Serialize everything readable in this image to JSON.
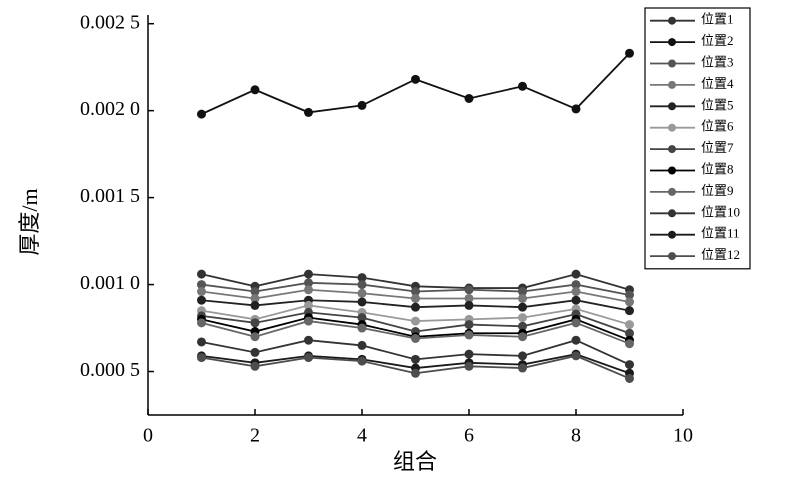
{
  "chart_data": {
    "type": "line",
    "x_label": "组合",
    "y_label": "厚度/m",
    "xlim": [
      0,
      10
    ],
    "xticks": [
      0,
      2,
      4,
      6,
      8,
      10
    ],
    "ylim": [
      0.00025,
      0.00255
    ],
    "yticks": [
      {
        "value": 0.0005,
        "label": "0.000 5"
      },
      {
        "value": 0.001,
        "label": "0.001 0"
      },
      {
        "value": 0.0015,
        "label": "0.001 5"
      },
      {
        "value": 0.002,
        "label": "0.002 0"
      },
      {
        "value": 0.0025,
        "label": "0.002 5"
      }
    ],
    "grid": false,
    "legend": "upper right",
    "x": [
      1,
      2,
      3,
      4,
      5,
      6,
      7,
      8,
      9
    ],
    "series": [
      {
        "name": "位置1",
        "color": "#333333",
        "values": [
          0.00106,
          0.00099,
          0.00106,
          0.00104,
          0.00099,
          0.00098,
          0.00098,
          0.00106,
          0.00097
        ]
      },
      {
        "name": "位置2",
        "color": "#111111",
        "values": [
          0.00198,
          0.00212,
          0.00199,
          0.00203,
          0.00218,
          0.00207,
          0.00214,
          0.00201,
          0.00233
        ]
      },
      {
        "name": "位置3",
        "color": "#555555",
        "values": [
          0.001,
          0.00096,
          0.00101,
          0.001,
          0.00096,
          0.00097,
          0.00096,
          0.001,
          0.00094
        ]
      },
      {
        "name": "位置4",
        "color": "#777777",
        "values": [
          0.00096,
          0.00092,
          0.00097,
          0.00095,
          0.00092,
          0.00092,
          0.00092,
          0.00096,
          0.0009
        ]
      },
      {
        "name": "位置5",
        "color": "#222222",
        "values": [
          0.00091,
          0.00088,
          0.00091,
          0.0009,
          0.00087,
          0.00088,
          0.00087,
          0.00091,
          0.00085
        ]
      },
      {
        "name": "位置6",
        "color": "#999999",
        "values": [
          0.00085,
          0.0008,
          0.00088,
          0.00084,
          0.00079,
          0.0008,
          0.00081,
          0.00086,
          0.00077
        ]
      },
      {
        "name": "位置7",
        "color": "#444444",
        "values": [
          0.00082,
          0.00078,
          0.00084,
          0.00081,
          0.00073,
          0.00077,
          0.00076,
          0.00083,
          0.00072
        ]
      },
      {
        "name": "位置8",
        "color": "#000000",
        "values": [
          0.0008,
          0.00073,
          0.00081,
          0.00077,
          0.0007,
          0.00072,
          0.00072,
          0.0008,
          0.00068
        ]
      },
      {
        "name": "位置9",
        "color": "#666666",
        "values": [
          0.00078,
          0.0007,
          0.00079,
          0.00075,
          0.00069,
          0.00071,
          0.0007,
          0.00078,
          0.00066
        ]
      },
      {
        "name": "位置10",
        "color": "#333333",
        "values": [
          0.00067,
          0.00061,
          0.00068,
          0.00065,
          0.00057,
          0.0006,
          0.00059,
          0.00068,
          0.00054
        ]
      },
      {
        "name": "位置11",
        "color": "#1a1a1a",
        "values": [
          0.00059,
          0.00055,
          0.00059,
          0.00057,
          0.00052,
          0.00055,
          0.00054,
          0.0006,
          0.00049
        ]
      },
      {
        "name": "位置12",
        "color": "#4d4d4d",
        "values": [
          0.00058,
          0.00053,
          0.00058,
          0.00056,
          0.00049,
          0.00053,
          0.00052,
          0.00059,
          0.00046
        ]
      }
    ]
  }
}
